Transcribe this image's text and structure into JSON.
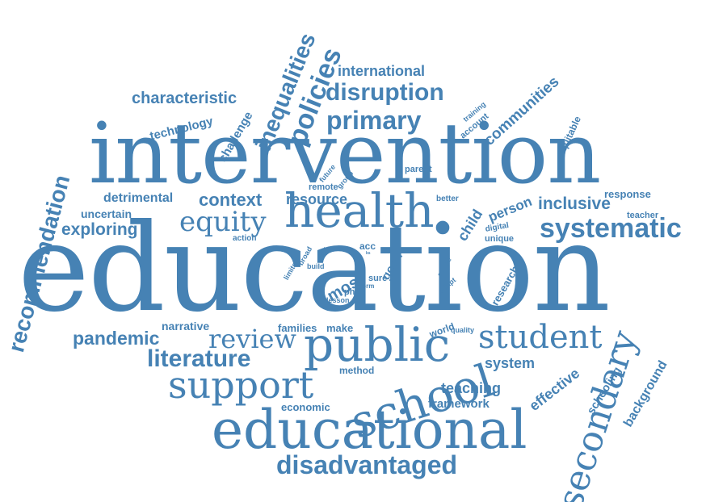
{
  "theme": {
    "word_color": "#4682b4",
    "background": "#ffffff"
  },
  "words": {
    "education": "education",
    "intervention": "intervention",
    "health": "health",
    "educational": "educational",
    "school": "school",
    "public": "public",
    "student": "student",
    "support": "support",
    "secondary": "secondary",
    "systematic": "systematic",
    "review": "review",
    "equity": "equity",
    "primary": "primary",
    "disruption": "disruption",
    "disadvantaged": "disadvantaged",
    "literature": "literature",
    "policies": "policies",
    "inequalities": "inequalities",
    "recommendation": "recommendation",
    "pandemic": "pandemic",
    "exploring": "exploring",
    "inclusive": "inclusive",
    "context": "context",
    "detrimental": "detrimental",
    "resource": "resource",
    "characteristic": "characteristic",
    "international": "international",
    "communities": "communities",
    "technology": "technology",
    "challenge": "challenge",
    "teaching": "teaching",
    "framework": "framework",
    "system": "system",
    "effective": "effective",
    "background": "background",
    "schooling": "schooling",
    "economic": "economic",
    "method": "method",
    "narrative": "narrative",
    "families": "families",
    "make": "make",
    "world": "world",
    "quality": "quality",
    "most": "most",
    "child": "child",
    "person": "person",
    "research": "research",
    "uncertain": "uncertain",
    "response": "response",
    "teacher": "teacher",
    "equitable": "equitable",
    "training": "training",
    "account": "account",
    "remote": "remote",
    "group": "group",
    "parent": "parent",
    "future": "future",
    "better": "better",
    "digital": "digital",
    "unique": "unique",
    "action": "action",
    "acc": "acc",
    "good": "good",
    "sure": "sure",
    "term": "term",
    "phes": "phes",
    "lesson": "lesson",
    "limited": "limited",
    "broad": "broad",
    "build": "build",
    "skill": "skill",
    "scope": "scope",
    "adapt": "adapt",
    "ks": "ks"
  }
}
